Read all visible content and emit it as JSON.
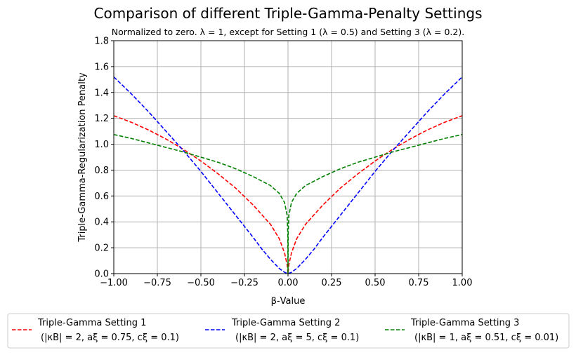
{
  "chart_data": {
    "type": "line",
    "title": "Comparison of different Triple-Gamma-Penalty Settings",
    "subtitle": "Normalized to zero. λ = 1, except for Setting 1 (λ = 0.5) and Setting 3 (λ = 0.2).",
    "xlabel": "β-Value",
    "ylabel": "Triple-Gamma-Regularization Penalty",
    "xlim": [
      -1.0,
      1.0
    ],
    "ylim": [
      0.0,
      1.8
    ],
    "xticks": [
      "−1.00",
      "−0.75",
      "−0.50",
      "−0.25",
      "0.00",
      "0.25",
      "0.50",
      "0.75",
      "1.00"
    ],
    "yticks": [
      "0.0",
      "0.2",
      "0.4",
      "0.6",
      "0.8",
      "1.0",
      "1.2",
      "1.4",
      "1.6",
      "1.8"
    ],
    "grid": true,
    "legend_position": "bottom",
    "series": [
      {
        "name": "Triple-Gamma Setting 1",
        "name_line2": "(|κB| = 2, aξ = 0.75, cξ = 0.1)",
        "color": "#ff0000",
        "style": "dashed",
        "x": [
          -1.0,
          -0.9,
          -0.8,
          -0.7,
          -0.6,
          -0.5,
          -0.4,
          -0.3,
          -0.2,
          -0.1,
          -0.05,
          -0.02,
          -0.005,
          0.0,
          0.005,
          0.02,
          0.05,
          0.1,
          0.2,
          0.3,
          0.4,
          0.5,
          0.6,
          0.7,
          0.8,
          0.9,
          1.0
        ],
        "y": [
          1.22,
          1.17,
          1.11,
          1.04,
          0.96,
          0.87,
          0.77,
          0.66,
          0.53,
          0.38,
          0.27,
          0.16,
          0.07,
          0.0,
          0.07,
          0.16,
          0.27,
          0.38,
          0.53,
          0.66,
          0.77,
          0.87,
          0.96,
          1.04,
          1.11,
          1.17,
          1.22
        ]
      },
      {
        "name": "Triple-Gamma Setting 2",
        "name_line2": "(|κB| = 2, aξ = 5, cξ = 0.1)",
        "color": "#0000ff",
        "style": "dashed",
        "x": [
          -1.0,
          -0.9,
          -0.8,
          -0.7,
          -0.6,
          -0.5,
          -0.4,
          -0.3,
          -0.2,
          -0.15,
          -0.1,
          -0.05,
          -0.02,
          0.0,
          0.02,
          0.05,
          0.1,
          0.15,
          0.2,
          0.3,
          0.4,
          0.5,
          0.6,
          0.7,
          0.8,
          0.9,
          1.0
        ],
        "y": [
          1.52,
          1.39,
          1.25,
          1.1,
          0.95,
          0.79,
          0.62,
          0.45,
          0.28,
          0.19,
          0.11,
          0.04,
          0.01,
          0.0,
          0.01,
          0.04,
          0.11,
          0.19,
          0.28,
          0.45,
          0.62,
          0.79,
          0.95,
          1.1,
          1.25,
          1.39,
          1.52
        ]
      },
      {
        "name": "Triple-Gamma Setting 3",
        "name_line2": "(|κB| = 1, aξ = 0.51, cξ = 0.01)",
        "color": "#008000",
        "style": "dashed",
        "x": [
          -1.0,
          -0.9,
          -0.8,
          -0.7,
          -0.6,
          -0.5,
          -0.4,
          -0.3,
          -0.2,
          -0.1,
          -0.05,
          -0.02,
          -0.005,
          -0.001,
          0.0,
          0.001,
          0.005,
          0.02,
          0.05,
          0.1,
          0.2,
          0.3,
          0.4,
          0.5,
          0.6,
          0.7,
          0.8,
          0.9,
          1.0
        ],
        "y": [
          1.075,
          1.045,
          1.01,
          0.975,
          0.94,
          0.9,
          0.86,
          0.81,
          0.75,
          0.68,
          0.62,
          0.55,
          0.45,
          0.3,
          0.0,
          0.3,
          0.45,
          0.55,
          0.62,
          0.68,
          0.75,
          0.81,
          0.86,
          0.9,
          0.94,
          0.975,
          1.01,
          1.045,
          1.075
        ]
      }
    ]
  }
}
